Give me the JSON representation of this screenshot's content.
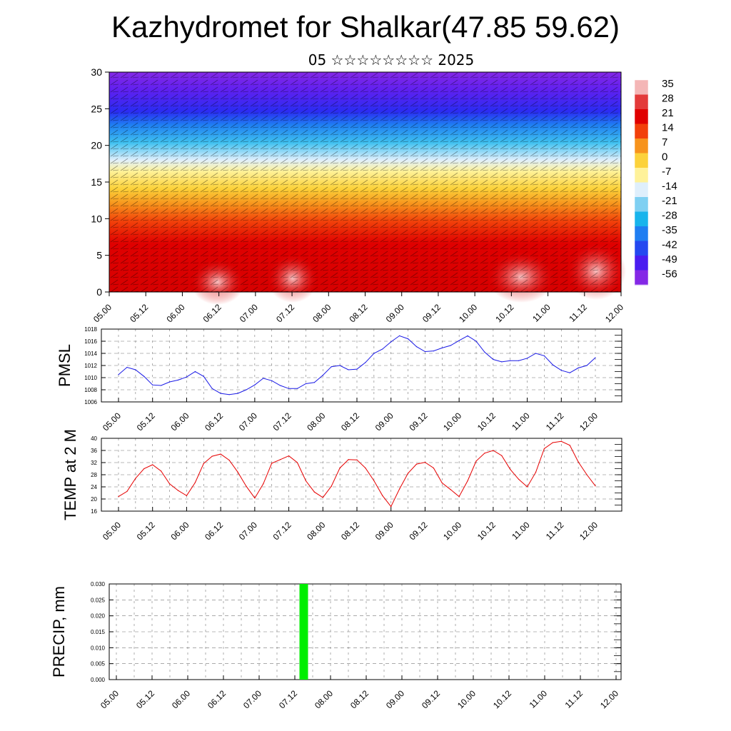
{
  "title": "Kazhydromet for Shalkar(47.85 59.62)",
  "subtitle": "05 ☆☆☆☆☆☆☆☆ 2025",
  "time_labels": [
    "05.00",
    "05.12",
    "06.00",
    "06.12",
    "07.00",
    "07.12",
    "08.00",
    "08.12",
    "09.00",
    "09.12",
    "10.00",
    "10.12",
    "11.00",
    "11.12",
    "12.00"
  ],
  "colors": {
    "pmsl_line": "#1a1ae6",
    "temp_line": "#e60000",
    "precip_bar": "#00ee00"
  },
  "chart_data": [
    {
      "type": "heatmap",
      "title": "",
      "ylim": [
        0,
        30
      ],
      "yticks": [
        0,
        5,
        10,
        15,
        20,
        25,
        30
      ],
      "colorbar": {
        "labels": [
          "35",
          "28",
          "21",
          "14",
          "7",
          "0",
          "-7",
          "-14",
          "-21",
          "-28",
          "-35",
          "-42",
          "-49",
          "-56"
        ],
        "colors": [
          "#f4b6b6",
          "#e33a3a",
          "#e00000",
          "#f2400a",
          "#f7931c",
          "#fcd23a",
          "#fff29a",
          "#dfeffc",
          "#7fd0f2",
          "#18b4ec",
          "#1f7ef2",
          "#2448f0",
          "#4a1cf0",
          "#8428e6"
        ]
      }
    },
    {
      "type": "line",
      "ylabel": "PMSL",
      "ylim": [
        1006,
        1018
      ],
      "yticks": [
        1006,
        1008,
        1010,
        1012,
        1014,
        1016,
        1018
      ],
      "series": [
        {
          "x": [
            0,
            3,
            6,
            9,
            12,
            15,
            18,
            21,
            24,
            27,
            30,
            33,
            36,
            39,
            42,
            45,
            48,
            51,
            54,
            57,
            60,
            63,
            66,
            69,
            72,
            75,
            78,
            81,
            84,
            87,
            90,
            93,
            96,
            99,
            102,
            105,
            108,
            111,
            114,
            117,
            120,
            123,
            126,
            129,
            132,
            135,
            138,
            141,
            144,
            147,
            150,
            153,
            156,
            159,
            162,
            165,
            168
          ],
          "values": [
            1010.5,
            1011.7,
            1011.3,
            1010.2,
            1008.8,
            1008.7,
            1009.3,
            1009.6,
            1010.1,
            1011.0,
            1010.2,
            1008.2,
            1007.4,
            1007.2,
            1007.4,
            1008.0,
            1008.8,
            1009.9,
            1009.5,
            1008.7,
            1008.2,
            1008.2,
            1009.0,
            1009.2,
            1010.4,
            1011.8,
            1012.0,
            1011.3,
            1011.4,
            1012.5,
            1014.0,
            1014.7,
            1015.9,
            1016.9,
            1016.4,
            1015.1,
            1014.3,
            1014.4,
            1014.9,
            1015.3,
            1016.1,
            1016.9,
            1016.0,
            1014.2,
            1013.0,
            1012.6,
            1012.8,
            1012.8,
            1013.2,
            1014.0,
            1013.6,
            1012.1,
            1011.2,
            1010.8,
            1011.6,
            1012.0,
            1013.3
          ]
        }
      ]
    },
    {
      "type": "line",
      "ylabel": "TEMP at 2 M",
      "ylim": [
        16,
        40
      ],
      "yticks": [
        16,
        20,
        24,
        28,
        32,
        36,
        40
      ],
      "series": [
        {
          "x": [
            0,
            3,
            6,
            9,
            12,
            15,
            18,
            21,
            24,
            27,
            30,
            33,
            36,
            39,
            42,
            45,
            48,
            51,
            54,
            57,
            60,
            63,
            66,
            69,
            72,
            75,
            78,
            81,
            84,
            87,
            90,
            93,
            96,
            99,
            102,
            105,
            108,
            111,
            114,
            117,
            120,
            123,
            126,
            129,
            132,
            135,
            138,
            141,
            144,
            147,
            150,
            153,
            156,
            159,
            162,
            165,
            168
          ],
          "values": [
            20.8,
            22.5,
            26.8,
            30.0,
            31.3,
            29.2,
            25.0,
            22.8,
            21.1,
            25.4,
            31.7,
            34.1,
            34.8,
            32.8,
            28.9,
            24.2,
            20.3,
            25.0,
            31.8,
            33.0,
            34.2,
            32.0,
            26.0,
            22.3,
            20.5,
            24.2,
            30.2,
            33.0,
            32.9,
            30.2,
            26.0,
            21.1,
            17.5,
            23.3,
            28.5,
            31.5,
            32.1,
            30.2,
            25.3,
            23.1,
            20.8,
            26.0,
            32.5,
            35.1,
            36.0,
            34.3,
            29.8,
            26.5,
            24.0,
            28.8,
            36.6,
            38.6,
            39.0,
            37.7,
            32.2,
            28.0,
            24.3
          ]
        }
      ]
    },
    {
      "type": "bar",
      "ylabel": "PRECIP, mm",
      "ylim": [
        0.0,
        0.03
      ],
      "yticks": [
        "0.000",
        "0.005",
        "0.010",
        "0.015",
        "0.020",
        "0.025",
        "0.030"
      ],
      "x": [
        63
      ],
      "values": [
        0.03
      ]
    }
  ]
}
